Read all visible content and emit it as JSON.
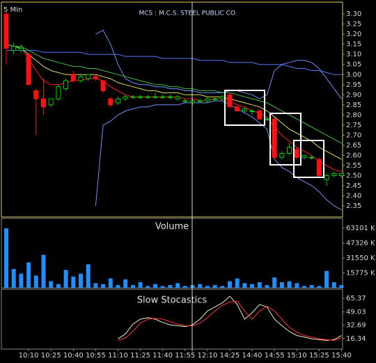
{
  "chart_data": [
    {
      "type": "candlestick",
      "title": "MCS : M.C.S. STEEL PUBLIC CO.",
      "interval": "5 Min",
      "up_color": "#00d000",
      "down_color": "#ff1010",
      "open": [
        3.3,
        3.12,
        3.12,
        3.1,
        2.92,
        2.88,
        2.85,
        2.88,
        2.93,
        3.0,
        2.97,
        2.98,
        2.99,
        2.97,
        2.88,
        2.86,
        2.88,
        2.89,
        2.89,
        2.89,
        2.89,
        2.89,
        2.89,
        2.88,
        2.87,
        2.86,
        2.87,
        2.87,
        2.88,
        2.88,
        2.9,
        2.84,
        2.82,
        2.82,
        2.82,
        2.78,
        2.78,
        2.59,
        2.61,
        2.63,
        2.59,
        2.59,
        2.58,
        2.48,
        2.5,
        2.5
      ],
      "high": [
        3.32,
        3.16,
        3.15,
        3.11,
        2.93,
        2.98,
        2.88,
        2.95,
        2.98,
        3.02,
        3.0,
        3.0,
        3.0,
        2.97,
        2.89,
        2.89,
        2.9,
        2.9,
        2.9,
        2.9,
        2.91,
        2.9,
        2.9,
        2.9,
        2.88,
        2.88,
        2.88,
        2.89,
        2.89,
        2.9,
        2.91,
        2.85,
        2.84,
        2.83,
        2.83,
        2.79,
        2.79,
        2.62,
        2.66,
        2.64,
        2.6,
        2.6,
        2.59,
        2.51,
        2.52,
        2.51
      ],
      "low": [
        3.05,
        3.1,
        3.11,
        2.95,
        2.7,
        2.8,
        2.84,
        2.87,
        2.92,
        2.96,
        2.96,
        2.97,
        2.97,
        2.91,
        2.84,
        2.85,
        2.87,
        2.88,
        2.88,
        2.88,
        2.88,
        2.88,
        2.88,
        2.87,
        2.86,
        2.85,
        2.86,
        2.86,
        2.87,
        2.87,
        2.84,
        2.82,
        2.81,
        2.8,
        2.78,
        2.77,
        2.58,
        2.58,
        2.6,
        2.58,
        2.58,
        2.58,
        2.49,
        2.45,
        2.49,
        2.49
      ],
      "close": [
        3.13,
        3.14,
        3.13,
        2.95,
        2.88,
        2.84,
        2.88,
        2.94,
        2.97,
        2.97,
        2.99,
        3.0,
        2.98,
        2.92,
        2.85,
        2.88,
        2.89,
        2.89,
        2.89,
        2.89,
        2.89,
        2.89,
        2.89,
        2.89,
        2.87,
        2.87,
        2.87,
        2.88,
        2.88,
        2.89,
        2.84,
        2.82,
        2.83,
        2.82,
        2.78,
        2.78,
        2.59,
        2.61,
        2.64,
        2.59,
        2.6,
        2.59,
        2.5,
        2.5,
        2.51,
        2.51
      ],
      "overlays": [
        {
          "color": "#5078ff",
          "values": [
            3.12,
            3.12,
            3.12,
            3.12,
            3.12,
            3.11,
            3.11,
            3.11,
            3.11,
            3.11,
            3.11,
            3.1,
            3.1,
            3.1,
            3.1,
            3.1,
            3.09,
            3.09,
            3.09,
            3.09,
            3.09,
            3.08,
            3.08,
            3.08,
            3.08,
            3.08,
            3.07,
            3.07,
            3.07,
            3.07,
            3.06,
            3.06,
            3.06,
            3.06,
            3.05,
            3.05,
            3.05,
            3.05,
            3.04,
            3.03,
            3.03,
            3.02,
            3.02,
            3.01,
            3.0,
            3.0
          ]
        },
        {
          "color": "#7090ff",
          "values": [
            null,
            null,
            null,
            null,
            null,
            null,
            null,
            null,
            null,
            null,
            null,
            null,
            3.2,
            3.22,
            3.15,
            3.05,
            2.98,
            2.96,
            2.95,
            2.95,
            2.94,
            2.94,
            2.93,
            2.93,
            2.92,
            2.92,
            2.91,
            2.91,
            2.91,
            2.91,
            2.92,
            2.92,
            2.91,
            2.9,
            2.88,
            2.9,
            3.02,
            3.05,
            3.06,
            3.07,
            3.07,
            3.06,
            3.03,
            2.98,
            2.93,
            2.88
          ]
        },
        {
          "color": "#7090ff",
          "values": [
            null,
            null,
            null,
            null,
            null,
            null,
            null,
            null,
            null,
            null,
            null,
            null,
            2.35,
            2.75,
            2.77,
            2.8,
            2.82,
            2.83,
            2.84,
            2.84,
            2.85,
            2.85,
            2.85,
            2.85,
            2.86,
            2.86,
            2.86,
            2.86,
            2.87,
            2.87,
            2.85,
            2.83,
            2.81,
            2.79,
            2.76,
            2.73,
            2.58,
            2.54,
            2.52,
            2.49,
            2.47,
            2.45,
            2.42,
            2.38,
            2.35,
            2.33
          ]
        },
        {
          "color": "#ff2020",
          "values": [
            3.15,
            3.14,
            3.13,
            3.08,
            3.02,
            2.97,
            2.95,
            2.95,
            2.96,
            2.97,
            2.97,
            2.98,
            2.98,
            2.97,
            2.94,
            2.92,
            2.9,
            2.89,
            2.89,
            2.89,
            2.89,
            2.89,
            2.89,
            2.89,
            2.88,
            2.88,
            2.87,
            2.87,
            2.88,
            2.88,
            2.87,
            2.85,
            2.84,
            2.82,
            2.81,
            2.79,
            2.74,
            2.7,
            2.67,
            2.64,
            2.62,
            2.6,
            2.57,
            2.55,
            2.53,
            2.52
          ]
        },
        {
          "color": "#e0e060",
          "values": [
            3.15,
            3.14,
            3.13,
            3.1,
            3.07,
            3.04,
            3.02,
            3.01,
            3.0,
            3.0,
            3.0,
            3.0,
            3.0,
            2.99,
            2.98,
            2.96,
            2.95,
            2.94,
            2.93,
            2.92,
            2.92,
            2.91,
            2.91,
            2.91,
            2.9,
            2.9,
            2.9,
            2.89,
            2.89,
            2.89,
            2.88,
            2.87,
            2.86,
            2.85,
            2.84,
            2.82,
            2.79,
            2.76,
            2.73,
            2.71,
            2.69,
            2.67,
            2.64,
            2.62,
            2.6,
            2.58
          ]
        },
        {
          "color": "#40c040",
          "values": [
            3.15,
            3.14,
            3.14,
            3.12,
            3.1,
            3.08,
            3.07,
            3.06,
            3.05,
            3.04,
            3.04,
            3.03,
            3.03,
            3.02,
            3.01,
            3.0,
            2.99,
            2.98,
            2.97,
            2.96,
            2.95,
            2.95,
            2.94,
            2.94,
            2.93,
            2.93,
            2.92,
            2.92,
            2.92,
            2.91,
            2.91,
            2.9,
            2.89,
            2.88,
            2.87,
            2.86,
            2.84,
            2.82,
            2.8,
            2.78,
            2.76,
            2.74,
            2.72,
            2.7,
            2.68,
            2.66
          ]
        }
      ],
      "ylim": [
        2.295,
        3.359
      ],
      "yticks": [
        {
          "value": 3.3,
          "label": "3.30"
        },
        {
          "value": 3.25,
          "label": "3.25"
        },
        {
          "value": 3.2,
          "label": "3.20"
        },
        {
          "value": 3.15,
          "label": "3.15"
        },
        {
          "value": 3.1,
          "label": "3.10"
        },
        {
          "value": 3.05,
          "label": "3.05"
        },
        {
          "value": 3.0,
          "label": "3.00"
        },
        {
          "value": 2.95,
          "label": "2.95"
        },
        {
          "value": 2.9,
          "label": "2.90"
        },
        {
          "value": 2.85,
          "label": "2.85"
        },
        {
          "value": 2.8,
          "label": "2.80"
        },
        {
          "value": 2.75,
          "label": "2.75"
        },
        {
          "value": 2.7,
          "label": "2.70"
        },
        {
          "value": 2.65,
          "label": "2.65"
        },
        {
          "value": 2.6,
          "label": "2.60"
        },
        {
          "value": 2.55,
          "label": "2.55"
        },
        {
          "value": 2.5,
          "label": "2.50"
        },
        {
          "value": 2.45,
          "label": "2.45"
        },
        {
          "value": 2.4,
          "label": "2.40"
        },
        {
          "value": 2.35,
          "label": "2.35"
        }
      ]
    },
    {
      "type": "bar",
      "title": "Volume",
      "color": "#1e8fff",
      "values": [
        63000,
        20000,
        15000,
        27000,
        13000,
        35000,
        7000,
        4000,
        19000,
        12000,
        15000,
        25000,
        5000,
        4000,
        10000,
        3000,
        9000,
        3000,
        6000,
        2000,
        4000,
        2000,
        3000,
        5000,
        2000,
        3000,
        4000,
        2000,
        3000,
        2000,
        7000,
        10000,
        5000,
        4000,
        6000,
        3000,
        11000,
        6000,
        7000,
        5000,
        2000,
        3000,
        2000,
        18000,
        6000,
        3000
      ],
      "ylim": [
        0,
        73500
      ],
      "yticks": [
        {
          "value": 63101,
          "label": "63101 K"
        },
        {
          "value": 47326,
          "label": "47326 K"
        },
        {
          "value": 31550,
          "label": "31550 K"
        },
        {
          "value": 15775,
          "label": "15775 K"
        }
      ]
    },
    {
      "type": "line",
      "title": "Slow Stocastics",
      "categories": [
        null,
        null,
        null,
        "10:10",
        null,
        null,
        "10:25",
        null,
        null,
        "10:40",
        null,
        null,
        "10:55",
        null,
        null,
        "11:10",
        null,
        null,
        "11:25",
        null,
        null,
        "11:40",
        null,
        null,
        "11:55",
        null,
        null,
        "12:10",
        null,
        null,
        "14:25",
        null,
        null,
        "14:40",
        null,
        null,
        "14:55",
        null,
        null,
        "15:10",
        null,
        null,
        "15:25",
        null,
        null,
        "15:40"
      ],
      "series": [
        {
          "color": "#e8f0c0",
          "values": [
            null,
            null,
            null,
            null,
            null,
            null,
            null,
            null,
            null,
            null,
            null,
            null,
            null,
            null,
            null,
            16,
            22,
            34,
            40,
            42,
            40,
            36,
            33,
            32,
            31,
            33,
            40,
            50,
            55,
            60,
            68,
            58,
            40,
            48,
            58,
            55,
            40,
            32,
            25,
            20,
            18,
            16,
            15,
            14,
            15,
            20
          ]
        },
        {
          "color": "#ff3030",
          "values": [
            null,
            null,
            null,
            null,
            null,
            null,
            null,
            null,
            null,
            null,
            null,
            null,
            null,
            null,
            null,
            14,
            17,
            25,
            35,
            40,
            41,
            40,
            37,
            34,
            32,
            32,
            35,
            42,
            50,
            57,
            61,
            62,
            50,
            40,
            50,
            56,
            50,
            40,
            30,
            24,
            20,
            18,
            16,
            15,
            14,
            17
          ]
        }
      ],
      "ylim": [
        3.4,
        76.6
      ],
      "yticks": [
        65.37,
        49.03,
        32.69,
        16.34
      ]
    }
  ]
}
